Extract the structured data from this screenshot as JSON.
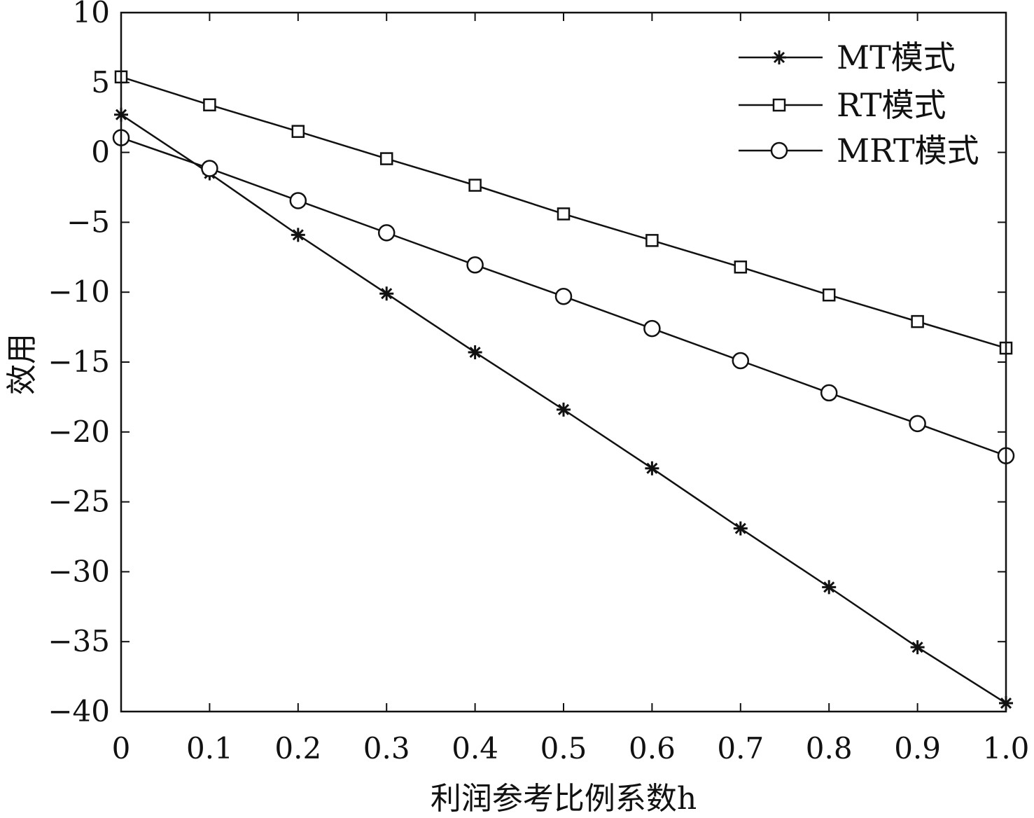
{
  "chart_data": {
    "type": "line",
    "title": "",
    "xlabel": "利润参考比例系数h",
    "ylabel": "效用",
    "xlim": [
      0,
      1.0
    ],
    "ylim": [
      -40,
      10
    ],
    "x": [
      0,
      0.1,
      0.2,
      0.3,
      0.4,
      0.5,
      0.6,
      0.7,
      0.8,
      0.9,
      1.0
    ],
    "x_tick_labels": [
      "0",
      "0.1",
      "0.2",
      "0.3",
      "0.4",
      "0.5",
      "0.6",
      "0.7",
      "0.8",
      "0.9",
      "1.0"
    ],
    "y_ticks": [
      10,
      5,
      0,
      -5,
      -10,
      -15,
      -20,
      -25,
      -30,
      -35,
      -40
    ],
    "y_tick_labels": [
      "10",
      "5",
      "0",
      "−5",
      "−10",
      "−15",
      "−20",
      "−25",
      "−30",
      "−35",
      "−40"
    ],
    "grid": false,
    "legend_position": "top-right",
    "series": [
      {
        "name": "MT模式",
        "marker": "asterisk",
        "values": [
          2.7,
          -1.5,
          -5.9,
          -10.1,
          -14.3,
          -18.4,
          -22.6,
          -26.9,
          -31.1,
          -35.4,
          -39.4
        ]
      },
      {
        "name": "RT模式",
        "marker": "square",
        "values": [
          5.4,
          3.4,
          1.5,
          -0.45,
          -2.35,
          -4.4,
          -6.3,
          -8.2,
          -10.2,
          -12.1,
          -14.0
        ]
      },
      {
        "name": "MRT模式",
        "marker": "circle",
        "values": [
          1.05,
          -1.15,
          -3.45,
          -5.75,
          -8.05,
          -10.3,
          -12.6,
          -14.9,
          -17.2,
          -19.4,
          -21.7
        ]
      }
    ],
    "colors": {
      "line": "#111111",
      "background": "#ffffff"
    }
  }
}
